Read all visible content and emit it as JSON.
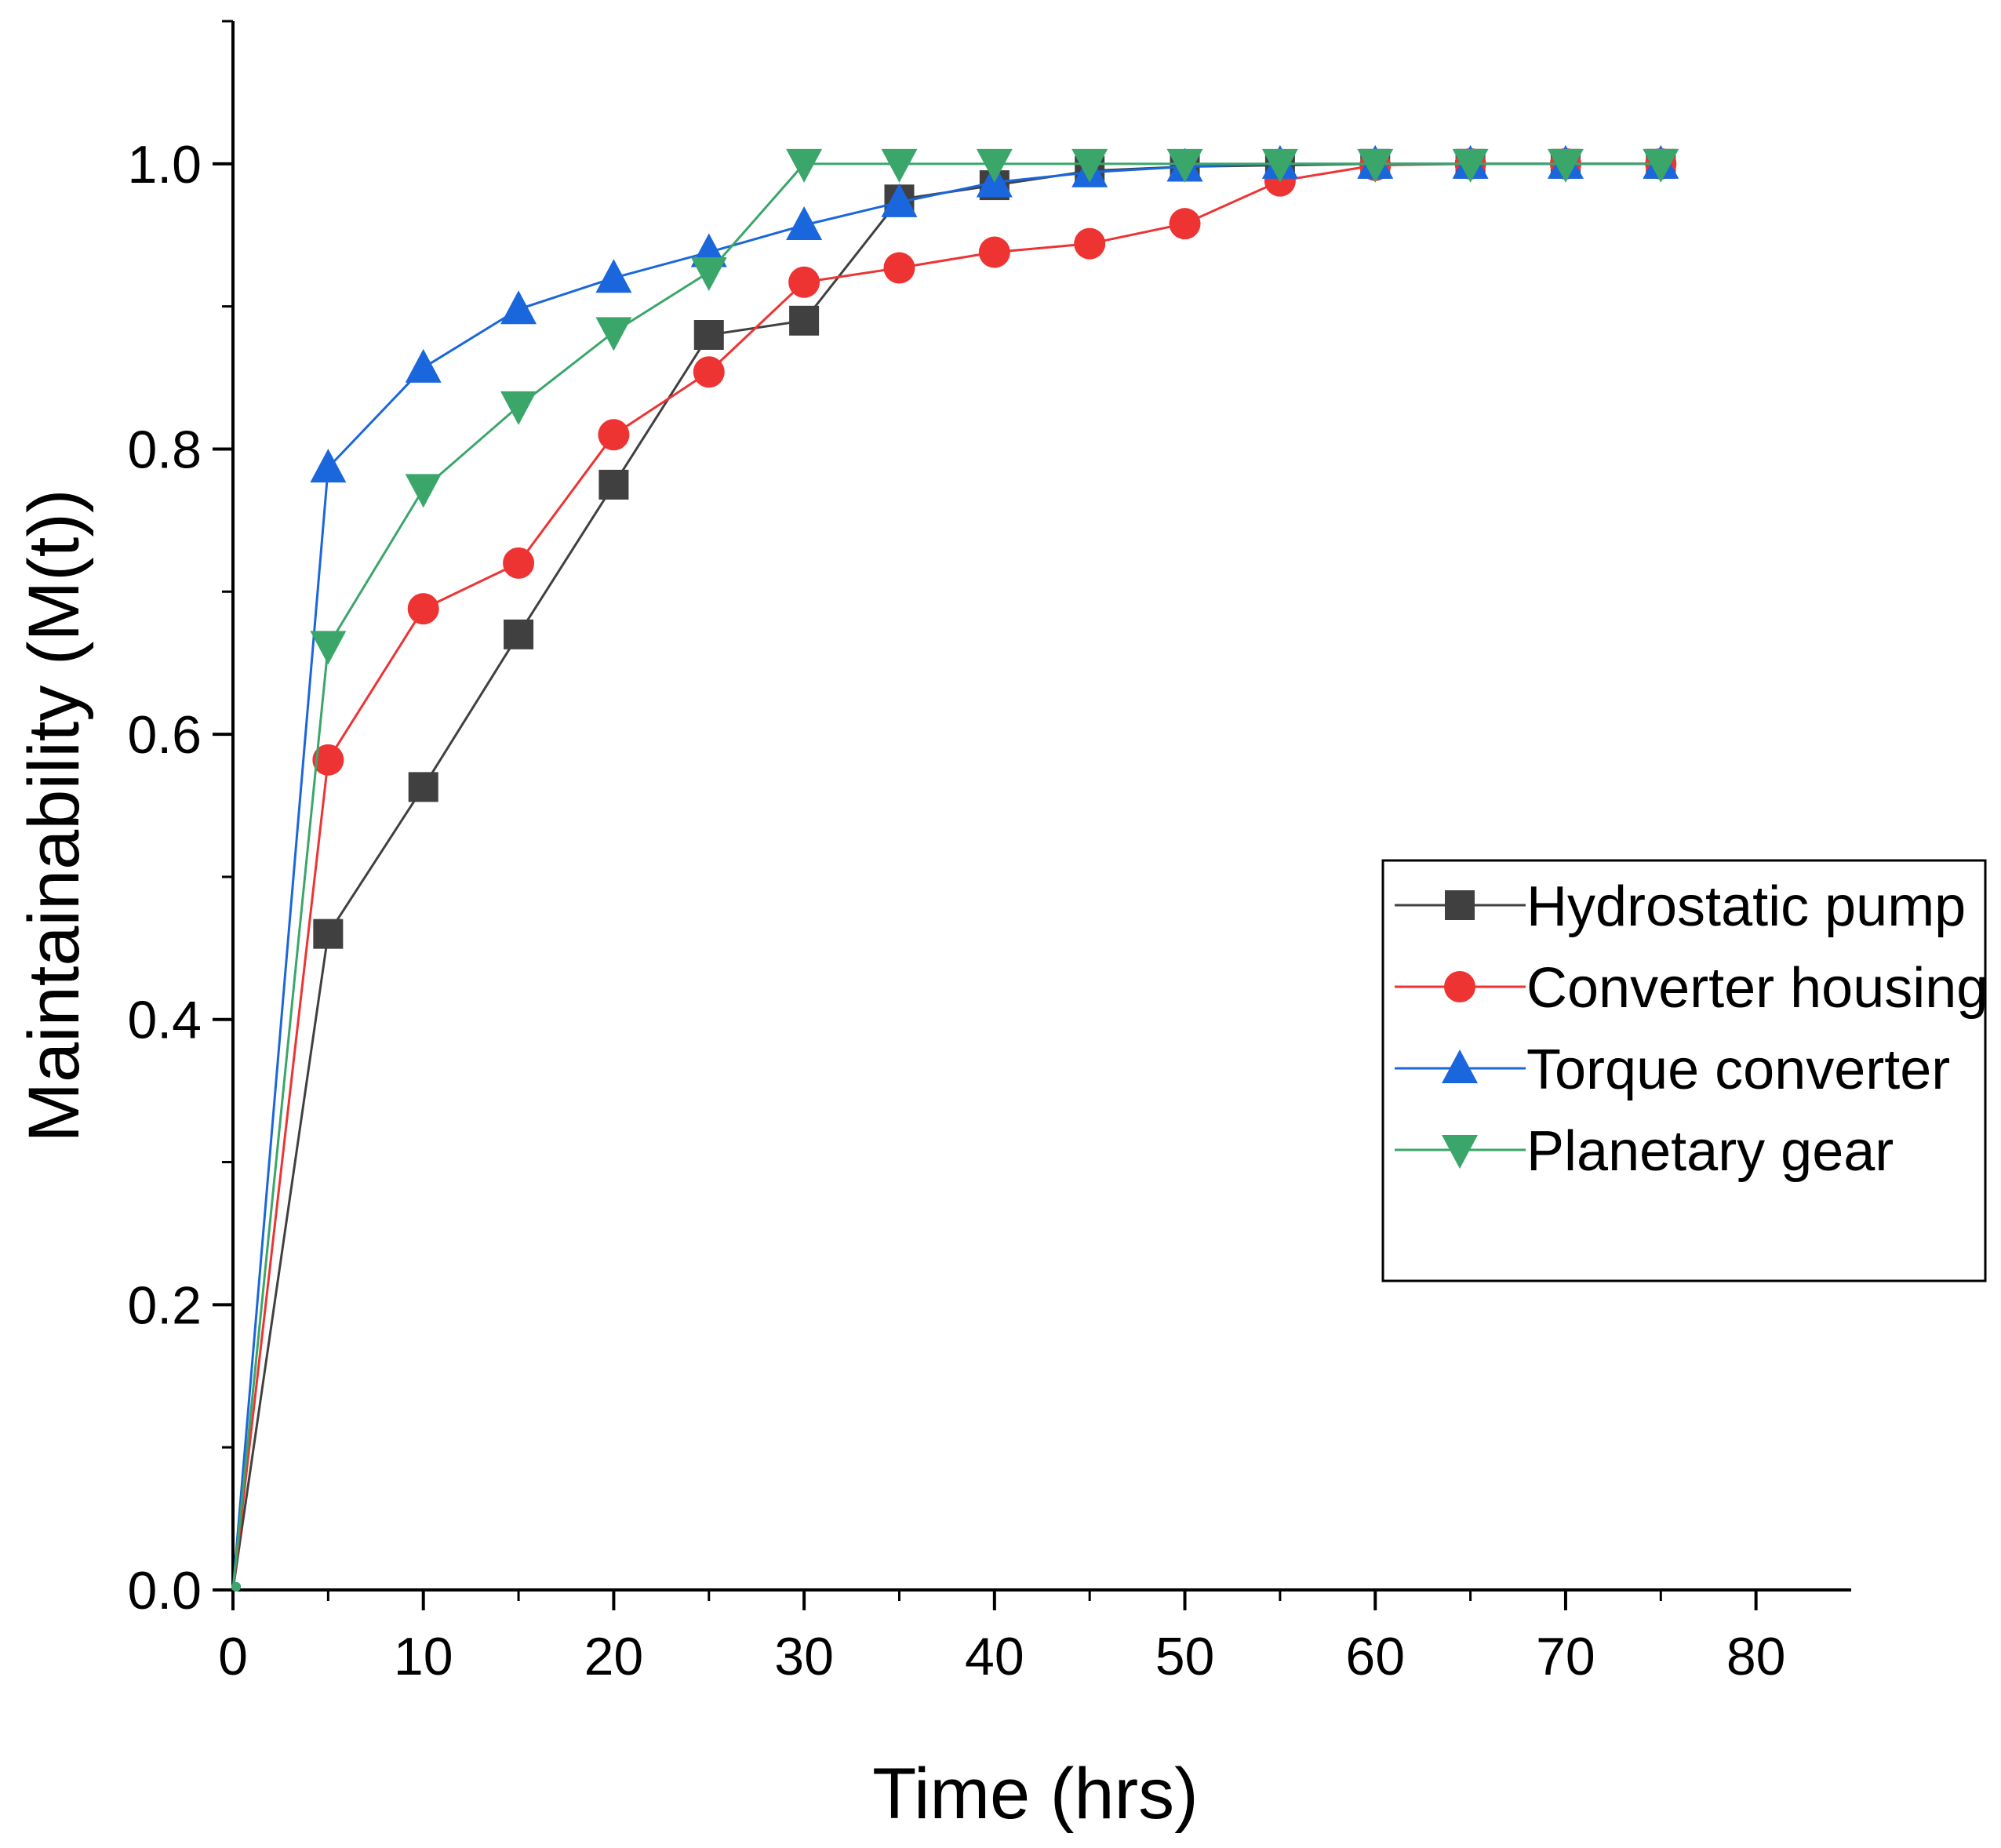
{
  "chart_data": {
    "type": "line",
    "title": "",
    "xlabel": "Time (hrs)",
    "ylabel": "Maintainability (M(t))",
    "xlim": [
      0,
      85
    ],
    "ylim": [
      0,
      1.1
    ],
    "grid": false,
    "legend_position": "right",
    "x_ticks": [
      0,
      10,
      20,
      30,
      40,
      50,
      60,
      70,
      80
    ],
    "x_tick_labels": [
      "0",
      "10",
      "20",
      "30",
      "40",
      "50",
      "60",
      "70",
      "80"
    ],
    "y_ticks": [
      0.0,
      0.2,
      0.4,
      0.6,
      0.8,
      1.0
    ],
    "y_tick_labels": [
      "0.0",
      "0.2",
      "0.4",
      "0.6",
      "0.8",
      "1.0"
    ],
    "x": [
      0,
      5,
      10,
      15,
      20,
      25,
      30,
      35,
      40,
      45,
      50,
      55,
      60,
      65,
      70,
      75
    ],
    "series": [
      {
        "name": "Hydrostatic pump",
        "color": "#404040",
        "marker": "square",
        "values": [
          0.0,
          0.46,
          0.563,
          0.67,
          0.775,
          0.88,
          0.89,
          0.975,
          0.985,
          0.995,
          0.998,
          0.999,
          1.0,
          1.0,
          1.0,
          1.0
        ]
      },
      {
        "name": "Converter housing",
        "color": "#ee3333",
        "marker": "circle",
        "values": [
          0.0,
          0.582,
          0.688,
          0.72,
          0.81,
          0.854,
          0.917,
          0.927,
          0.938,
          0.944,
          0.958,
          0.988,
          0.999,
          1.0,
          1.0,
          1.0
        ]
      },
      {
        "name": "Torque converter",
        "color": "#1a66dd",
        "marker": "triangle-up",
        "values": [
          0.0,
          0.787,
          0.857,
          0.898,
          0.92,
          0.938,
          0.957,
          0.973,
          0.987,
          0.994,
          0.998,
          1.0,
          1.0,
          1.0,
          1.0,
          1.0
        ]
      },
      {
        "name": "Planetary gear",
        "color": "#3aa66a",
        "marker": "triangle-down",
        "values": [
          0.0,
          0.662,
          0.772,
          0.83,
          0.882,
          0.924,
          1.0,
          1.0,
          1.0,
          1.0,
          1.0,
          1.0,
          1.0,
          1.0,
          1.0,
          1.0
        ]
      }
    ]
  }
}
